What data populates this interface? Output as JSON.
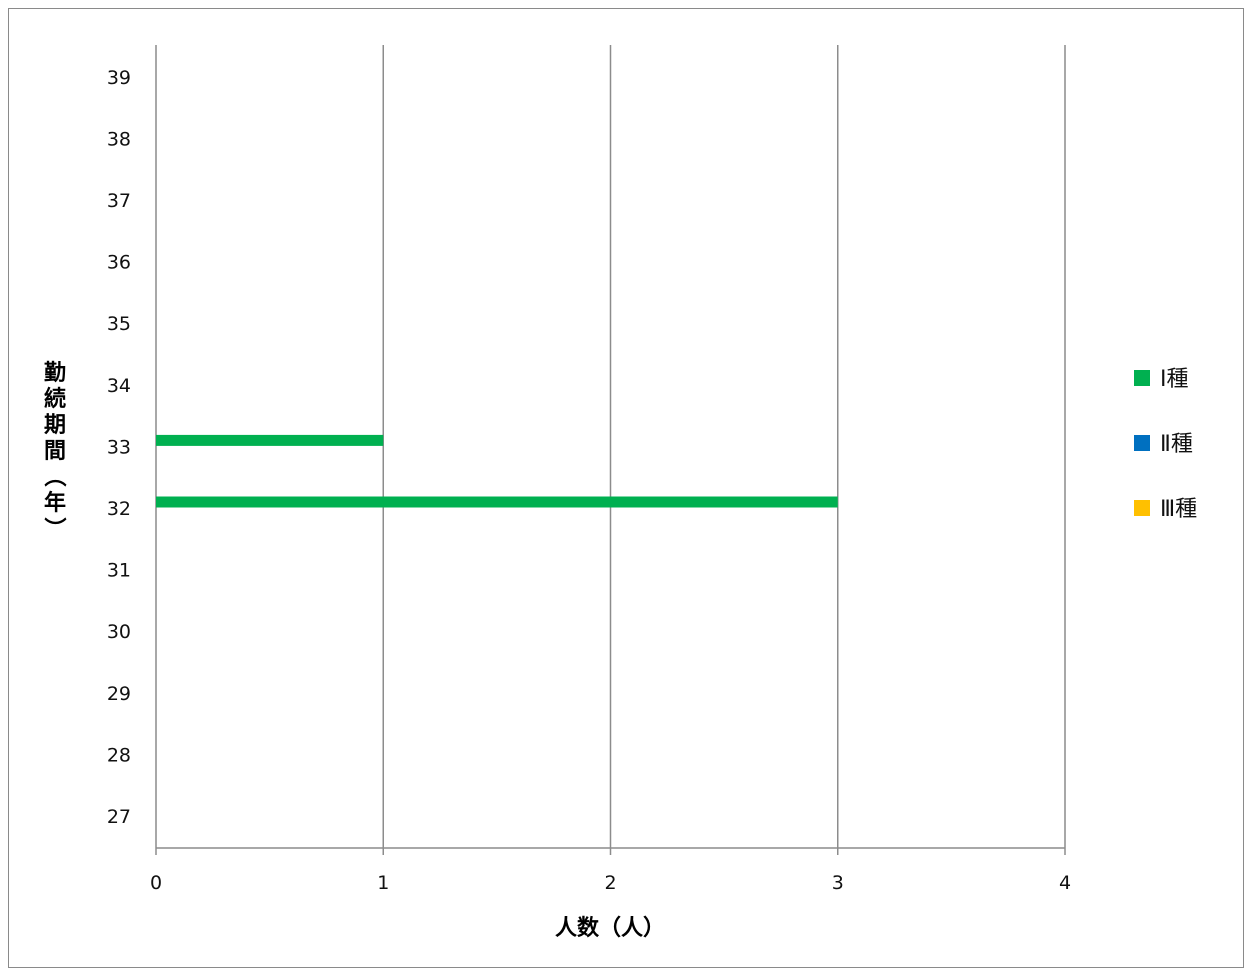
{
  "chart_data": {
    "type": "bar",
    "orientation": "horizontal",
    "title": "",
    "xlabel": "人数（人）",
    "ylabel": "勤続期間（年）",
    "xlim": [
      0,
      4
    ],
    "x_ticks": [
      "0",
      "1",
      "2",
      "3",
      "4"
    ],
    "categories": [
      "27",
      "28",
      "29",
      "30",
      "31",
      "32",
      "33",
      "34",
      "35",
      "36",
      "37",
      "38",
      "39"
    ],
    "series": [
      {
        "name": "Ⅰ種",
        "color": "#00b050",
        "values": [
          0,
          0,
          0,
          0,
          0,
          3,
          1,
          0,
          0,
          0,
          0,
          0,
          0
        ]
      },
      {
        "name": "Ⅱ種",
        "color": "#0070c0",
        "values": [
          0,
          0,
          0,
          0,
          0,
          0,
          0,
          0,
          0,
          0,
          0,
          0,
          0
        ]
      },
      {
        "name": "Ⅲ種",
        "color": "#ffc000",
        "values": [
          0,
          0,
          0,
          0,
          0,
          0,
          0,
          0,
          0,
          0,
          0,
          0,
          0
        ]
      }
    ],
    "grid": "vertical",
    "legend_position": "right"
  }
}
